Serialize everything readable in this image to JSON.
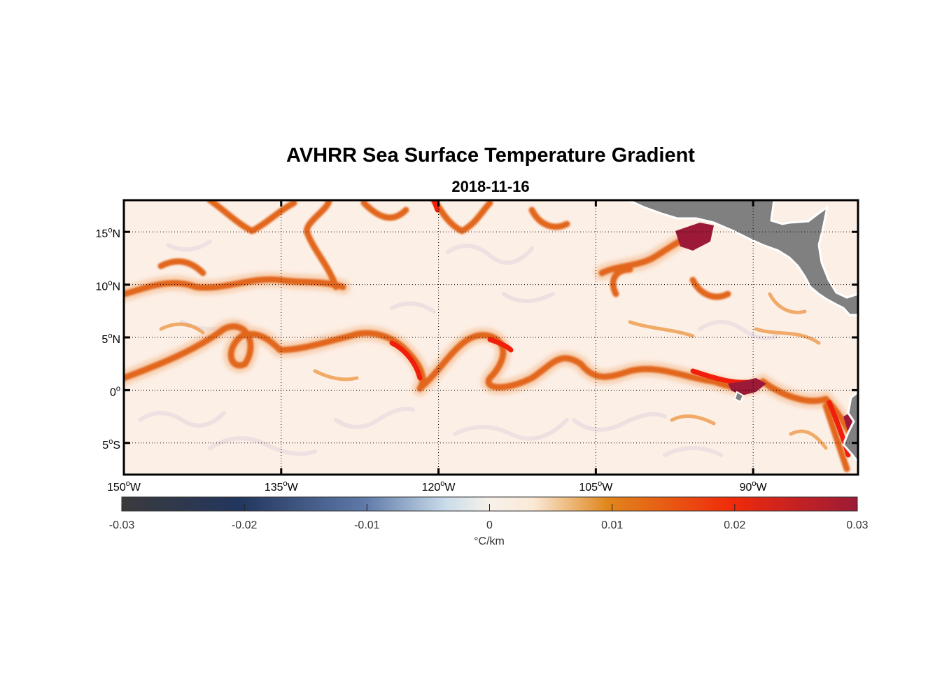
{
  "title": "AVHRR Sea Surface Temperature Gradient",
  "subtitle": "2018-11-16",
  "map": {
    "lon_range": [
      -150,
      -80
    ],
    "lat_range": [
      -8,
      18
    ],
    "lon_ticks": [
      {
        "value": -150,
        "deg": "150",
        "hemi": "W"
      },
      {
        "value": -135,
        "deg": "135",
        "hemi": "W"
      },
      {
        "value": -120,
        "deg": "120",
        "hemi": "W"
      },
      {
        "value": -105,
        "deg": "105",
        "hemi": "W"
      },
      {
        "value": -90,
        "deg": "90",
        "hemi": "W"
      }
    ],
    "lat_ticks": [
      {
        "value": 15,
        "deg": "15",
        "hemi": "N"
      },
      {
        "value": 10,
        "deg": "10",
        "hemi": "N"
      },
      {
        "value": 5,
        "deg": "5",
        "hemi": "N"
      },
      {
        "value": 0,
        "deg": "0",
        "hemi": ""
      },
      {
        "value": -5,
        "deg": "5",
        "hemi": "S"
      }
    ],
    "grid": true,
    "land_color": "#808080",
    "ocean_background": "#fcefe6"
  },
  "colorbar": {
    "range": [
      -0.03,
      0.03
    ],
    "ticks": [
      "-0.03",
      "-0.02",
      "-0.01",
      "0",
      "0.01",
      "0.02",
      "0.03"
    ],
    "unit_label": "°C/km",
    "colors": [
      "#3a3a3c",
      "#22365e",
      "#5f79a8",
      "#c9dbea",
      "#fae9d6",
      "#e0861c",
      "#f02a0a",
      "#9c1a38"
    ]
  }
}
